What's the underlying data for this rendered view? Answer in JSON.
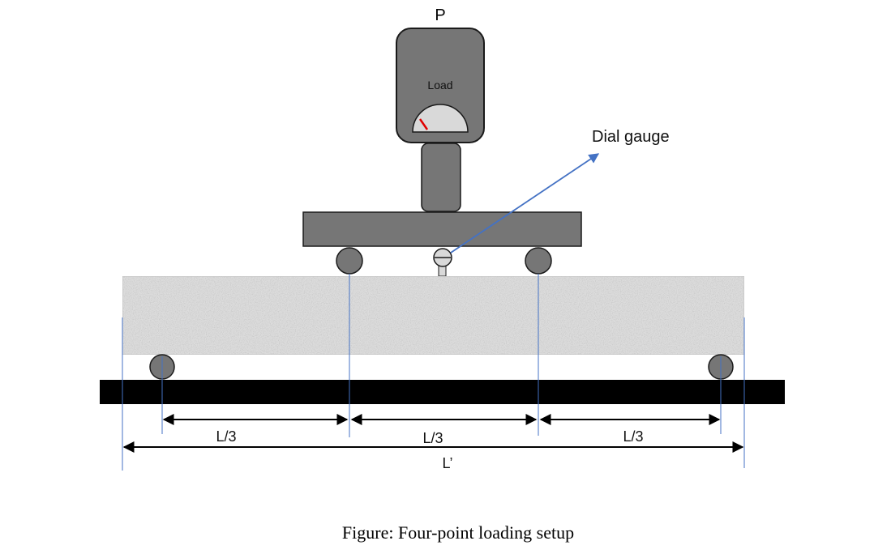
{
  "diagram": {
    "load_symbol": "P",
    "load_cell_label": "Load",
    "dial_gauge_label": "Dial gauge",
    "span_third_labels": [
      "L/3",
      "L/3",
      "L/3"
    ],
    "total_span_label": "L’",
    "caption": "Figure: Four-point loading setup"
  },
  "colors": {
    "frame_gray": "#767676",
    "outline": "#1a1a1a",
    "base_bar": "#000000",
    "guide_line": "#4472c4",
    "needle": "#e00000",
    "gauge_face": "#d9d9d9",
    "concrete": "#dcdcdc"
  }
}
